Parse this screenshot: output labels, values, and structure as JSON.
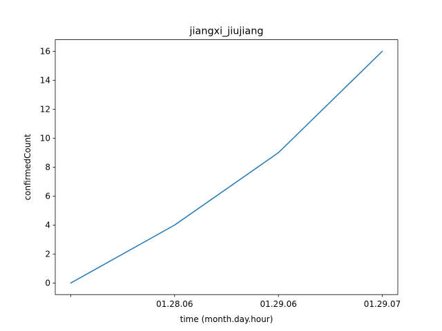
{
  "chart_data": {
    "type": "line",
    "title": "jiangxi_jiujiang",
    "xlabel": "time (month.day.hour)",
    "ylabel": "confirmedCount",
    "x_tick_labels": [
      "",
      "01.28.06",
      "01.29.06",
      "01.29.07"
    ],
    "series": [
      {
        "values": [
          0,
          4,
          9,
          16
        ],
        "color": "#1f77b4"
      }
    ],
    "ylim": [
      -0.8,
      16.8
    ],
    "y_ticks": [
      0,
      2,
      4,
      6,
      8,
      10,
      12,
      14,
      16
    ],
    "grid": false,
    "legend": "none"
  }
}
